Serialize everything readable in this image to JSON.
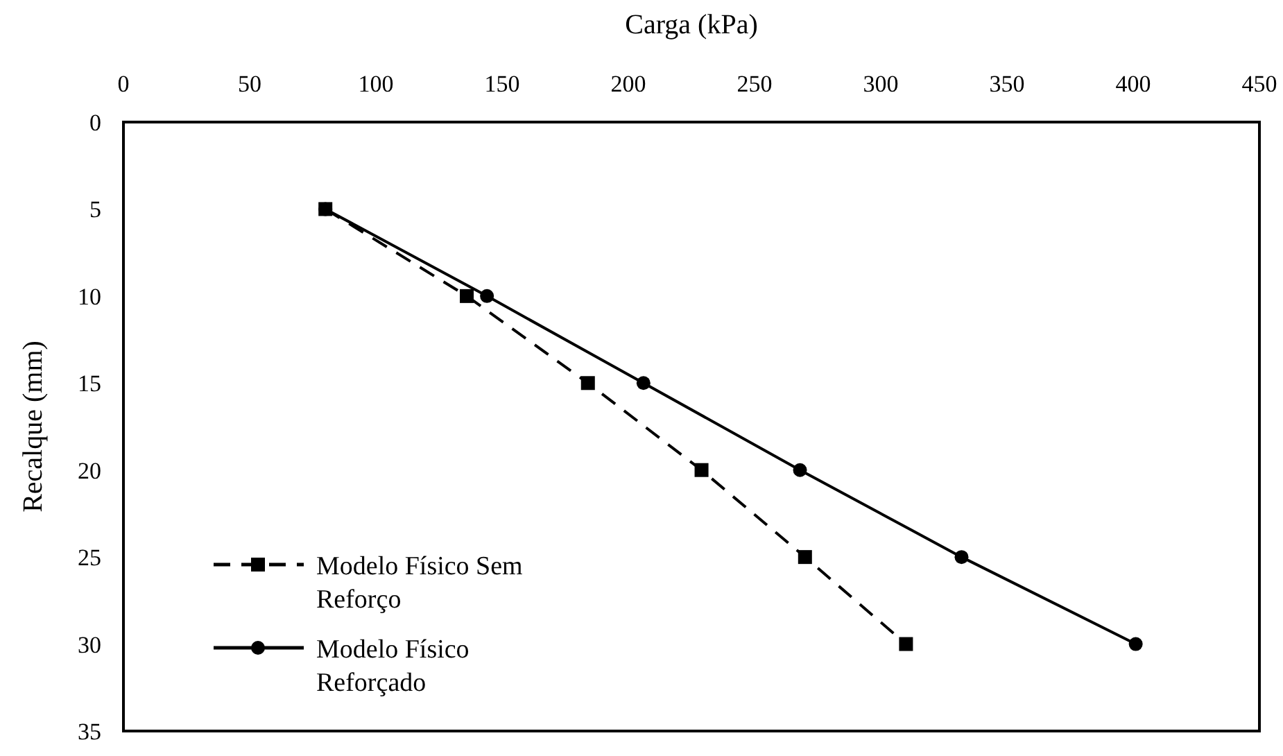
{
  "chart_data": {
    "type": "line",
    "xlabel": "Carga (kPa)",
    "ylabel": "Recalque (mm)",
    "xlim": [
      0,
      450
    ],
    "xticks": [
      0,
      50,
      100,
      150,
      200,
      250,
      300,
      350,
      400,
      450
    ],
    "ylim": [
      35,
      0
    ],
    "yticks": [
      0,
      5,
      10,
      15,
      20,
      25,
      30,
      35
    ],
    "legend": "bottom left",
    "grid": false,
    "series": [
      {
        "name": "Modelo Físico Sem Reforço",
        "color": "#000000",
        "marker": "square",
        "line_style": "dashed",
        "x": [
          80,
          136,
          184,
          229,
          270,
          310
        ],
        "values": [
          5,
          10,
          15,
          20,
          25,
          30
        ]
      },
      {
        "name": "Modelo Físico Reforçado",
        "color": "#000000",
        "marker": "circle",
        "line_style": "solid",
        "x": [
          80,
          144,
          206,
          268,
          332,
          401
        ],
        "values": [
          5,
          10,
          15,
          20,
          25,
          30
        ]
      }
    ]
  }
}
